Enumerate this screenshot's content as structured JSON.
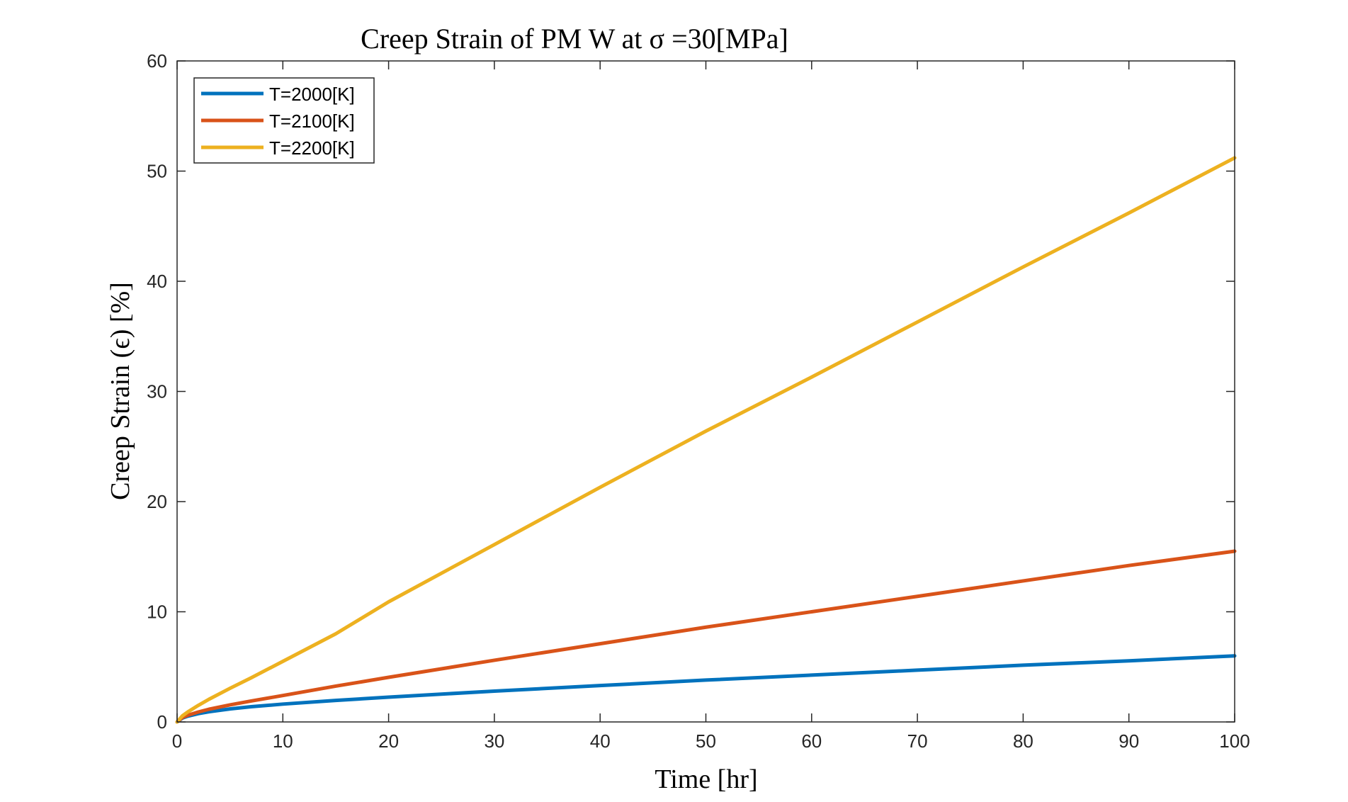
{
  "chart_data": {
    "type": "line",
    "title": "Creep Strain of PM W at σ =30[MPa]",
    "xlabel": "Time [hr]",
    "ylabel": "Creep Strain (ϵ) [%]",
    "xlim": [
      0,
      100
    ],
    "ylim": [
      0,
      60
    ],
    "xticks": [
      "0",
      "10",
      "20",
      "30",
      "40",
      "50",
      "60",
      "70",
      "80",
      "90",
      "100"
    ],
    "yticks": [
      "0",
      "10",
      "20",
      "30",
      "40",
      "50",
      "60"
    ],
    "grid": false,
    "legend_position": "top-left",
    "series": [
      {
        "name": "T=2000[K]",
        "color": "#0072BD",
        "x": [
          0,
          0.5,
          1,
          2,
          3,
          5,
          7,
          10,
          15,
          20,
          30,
          40,
          50,
          60,
          70,
          80,
          90,
          100
        ],
        "y": [
          0,
          0.35,
          0.52,
          0.75,
          0.92,
          1.18,
          1.38,
          1.62,
          1.95,
          2.25,
          2.8,
          3.3,
          3.8,
          4.25,
          4.7,
          5.15,
          5.55,
          6.0
        ]
      },
      {
        "name": "T=2100[K]",
        "color": "#D95319",
        "x": [
          0,
          0.5,
          1,
          2,
          3,
          5,
          7,
          10,
          15,
          20,
          30,
          40,
          50,
          60,
          70,
          80,
          90,
          100
        ],
        "y": [
          0,
          0.4,
          0.6,
          0.9,
          1.15,
          1.55,
          1.9,
          2.4,
          3.25,
          4.05,
          5.6,
          7.1,
          8.6,
          10.0,
          11.4,
          12.8,
          14.2,
          15.5
        ]
      },
      {
        "name": "T=2200[K]",
        "color": "#EDB120",
        "x": [
          0,
          0.5,
          1,
          2,
          3,
          5,
          7,
          10,
          15,
          20,
          30,
          40,
          50,
          60,
          70,
          80,
          90,
          100
        ],
        "y": [
          0,
          0.55,
          0.9,
          1.5,
          2.05,
          3.05,
          4.0,
          5.5,
          8.0,
          10.9,
          16.1,
          21.3,
          26.4,
          31.3,
          36.3,
          41.3,
          46.2,
          51.2
        ]
      }
    ]
  }
}
